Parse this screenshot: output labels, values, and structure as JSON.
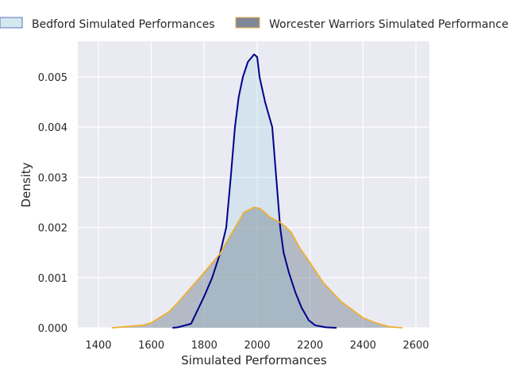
{
  "chart_data": {
    "type": "area",
    "title": "",
    "xlabel": "Simulated Performances",
    "ylabel": "Density",
    "xlim": [
      1330,
      2660
    ],
    "ylim": [
      0,
      0.0057
    ],
    "xticks": [
      1400,
      1600,
      1800,
      2000,
      2200,
      2400,
      2600
    ],
    "xtick_labels": [
      "1400",
      "1600",
      "1800",
      "2000",
      "2200",
      "2400",
      "2600"
    ],
    "yticks": [
      0,
      0.001,
      0.002,
      0.003,
      0.004,
      0.005
    ],
    "ytick_labels": [
      "0.000",
      "0.001",
      "0.002",
      "0.003",
      "0.004",
      "0.005"
    ],
    "grid": true,
    "legend_position": "top",
    "series": [
      {
        "name": "Bedford Simulated Performances",
        "line_color": "#00008b",
        "fill_color": "#add8e6",
        "x": [
          1680,
          1700,
          1750,
          1800,
          1830,
          1859,
          1883,
          1900,
          1916,
          1930,
          1946,
          1965,
          1988,
          2000,
          2009,
          2030,
          2057,
          2075,
          2087,
          2100,
          2120,
          2145,
          2168,
          2195,
          2219,
          2260,
          2300
        ],
        "y": [
          0,
          1e-05,
          8e-05,
          0.00063,
          0.001,
          0.00147,
          0.002,
          0.003,
          0.004,
          0.0046,
          0.005,
          0.0053,
          0.00545,
          0.0054,
          0.005,
          0.0045,
          0.004,
          0.0028,
          0.002,
          0.0015,
          0.0011,
          0.0007,
          0.0004,
          0.00015,
          5e-05,
          1e-05,
          0
        ]
      },
      {
        "name": "Worcester Warriors Simulated Performances",
        "line_color": "#f0b030",
        "fill_color": "#708090",
        "x": [
          1450,
          1500,
          1568,
          1600,
          1667,
          1700,
          1750,
          1799,
          1859,
          1900,
          1950,
          1988,
          2010,
          2050,
          2087,
          2110,
          2129,
          2160,
          2198,
          2250,
          2318,
          2400,
          2447,
          2500,
          2550
        ],
        "y": [
          0,
          2e-05,
          5e-05,
          0.0001,
          0.00032,
          0.0005,
          0.0008,
          0.0011,
          0.00147,
          0.00185,
          0.0023,
          0.0024,
          0.00238,
          0.0022,
          0.0021,
          0.002,
          0.0019,
          0.0016,
          0.00131,
          0.0009,
          0.00052,
          0.0002,
          0.0001,
          2e-05,
          0
        ]
      }
    ]
  }
}
